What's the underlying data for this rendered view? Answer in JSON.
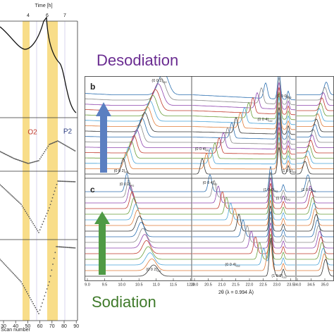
{
  "left_panel": {
    "time_label": "Time [h]",
    "time_ticks": [
      "4",
      "6",
      "7"
    ],
    "phase_labels": [
      "O2",
      "P2"
    ],
    "x_label": "Scan number",
    "x_ticks": [
      "30",
      "40",
      "50",
      "60",
      "70",
      "80",
      "90"
    ]
  },
  "right_panel": {
    "desodiation": "Desodiation",
    "sodiation": "Sodiation",
    "panel_b": "b",
    "panel_c": "c",
    "x_label": "2θ (λ = 0.994 Å)",
    "x_ticks": [
      [
        "9.0",
        "9.5",
        "10.0",
        "10.5",
        "11.0",
        "11.5",
        "12.0"
      ],
      [
        "20.0",
        "20.5",
        "21.0",
        "21.5",
        "22.0",
        "22.5",
        "23.0",
        "23.5"
      ],
      [
        "34.0",
        "34.5",
        "35.0",
        "35.5",
        "36.0"
      ]
    ],
    "peaks_b": [
      {
        "label": "(0 0 2)",
        "sub": "O2"
      },
      {
        "label": "(0 0 2)",
        "sub": "P2"
      },
      {
        "label": "(0 0 4)",
        "sub": "O2"
      },
      {
        "label": "(1 0 0)",
        "sub": "O2"
      },
      {
        "label": "(0 0 4)",
        "sub": "P2"
      },
      {
        "label": "(1 0 1)",
        "sub": "P2"
      }
    ],
    "peaks_c": [
      {
        "label": "(0 0 2)",
        "sub": "P2"
      },
      {
        "label": "(0 0 4)",
        "sub": "P2"
      },
      {
        "label": "(1 0 0)",
        "sub": "P2"
      },
      {
        "label": "(1 0 1)",
        "sub": "P2"
      },
      {
        "label": "(1 0 0)",
        "sub": "P2"
      },
      {
        "label": "(0 0 2)",
        "sub": "O2"
      },
      {
        "label": "(0 0 4)",
        "sub": "O2"
      },
      {
        "label": "(1 0 0)",
        "sub": "O2"
      }
    ]
  }
}
